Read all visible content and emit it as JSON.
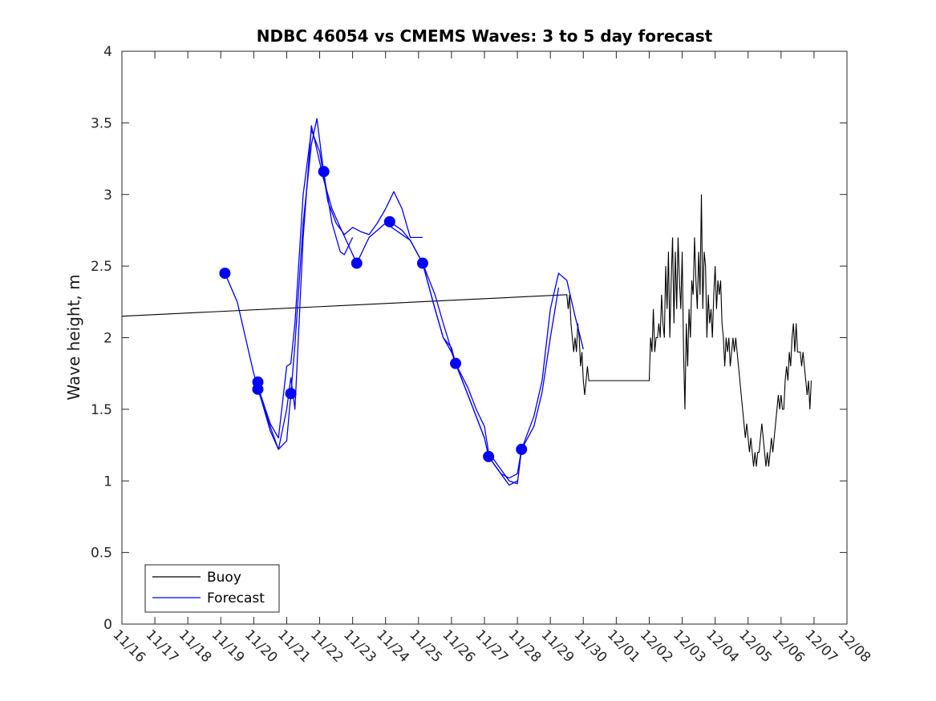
{
  "chart_data": {
    "type": "line",
    "title": "NDBC 46054 vs CMEMS Waves: 3 to 5 day forecast",
    "xlabel": "",
    "ylabel": "Wave height, m",
    "x_ticks": [
      "11/16",
      "11/17",
      "11/18",
      "11/19",
      "11/20",
      "11/21",
      "11/22",
      "11/23",
      "11/24",
      "11/25",
      "11/26",
      "11/27",
      "11/28",
      "11/29",
      "11/30",
      "12/01",
      "12/02",
      "12/03",
      "12/04",
      "12/05",
      "12/06",
      "12/07",
      "12/08"
    ],
    "y_ticks": [
      "0",
      "0.5",
      "1",
      "1.5",
      "2",
      "2.5",
      "3",
      "3.5",
      "4"
    ],
    "xlim": [
      "11/16",
      "12/08"
    ],
    "ylim": [
      0,
      4
    ],
    "grid": false,
    "legend_position": "bottom-left",
    "legend": [
      "Buoy",
      "Forecast"
    ],
    "colors": {
      "buoy": "#000000",
      "forecast": "#0000ff"
    },
    "series": [
      {
        "name": "Buoy",
        "color": "#000000",
        "points": [
          [
            "11/16 00:00",
            2.15
          ],
          [
            "11/29 12:00",
            2.3
          ],
          [
            "11/29 13:00",
            2.2
          ],
          [
            "11/29 14:00",
            2.3
          ],
          [
            "11/29 15:00",
            2.1
          ],
          [
            "11/29 16:00",
            2.0
          ],
          [
            "11/29 17:00",
            1.9
          ],
          [
            "11/29 18:00",
            2.0
          ],
          [
            "11/29 19:00",
            1.9
          ],
          [
            "11/29 20:00",
            2.1
          ],
          [
            "11/29 21:00",
            2.0
          ],
          [
            "11/29 22:00",
            1.8
          ],
          [
            "11/29 23:00",
            1.9
          ],
          [
            "11/30 00:00",
            1.7
          ],
          [
            "11/30 01:00",
            1.6
          ],
          [
            "11/30 02:00",
            1.7
          ],
          [
            "11/30 03:00",
            1.8
          ],
          [
            "11/30 04:00",
            1.7
          ],
          [
            "11/30 05:00",
            1.7
          ],
          [
            "12/02 00:00",
            1.7
          ],
          [
            "12/02 01:00",
            2.0
          ],
          [
            "12/02 02:00",
            1.9
          ],
          [
            "12/02 03:00",
            2.2
          ],
          [
            "12/02 04:00",
            1.9
          ],
          [
            "12/02 05:00",
            2.0
          ],
          [
            "12/02 06:00",
            2.0
          ],
          [
            "12/02 07:00",
            2.1
          ],
          [
            "12/02 08:00",
            2.0
          ],
          [
            "12/02 09:00",
            2.3
          ],
          [
            "12/02 10:00",
            2.1
          ],
          [
            "12/02 11:00",
            2.0
          ],
          [
            "12/02 12:00",
            2.5
          ],
          [
            "12/02 13:00",
            2.2
          ],
          [
            "12/02 14:00",
            2.6
          ],
          [
            "12/02 15:00",
            2.0
          ],
          [
            "12/02 16:00",
            2.4
          ],
          [
            "12/02 17:00",
            2.7
          ],
          [
            "12/02 18:00",
            2.1
          ],
          [
            "12/02 19:00",
            2.6
          ],
          [
            "12/02 20:00",
            2.2
          ],
          [
            "12/02 21:00",
            2.7
          ],
          [
            "12/02 22:00",
            2.4
          ],
          [
            "12/02 23:00",
            2.2
          ],
          [
            "12/03 00:00",
            2.6
          ],
          [
            "12/03 01:00",
            1.9
          ],
          [
            "12/03 02:00",
            1.5
          ],
          [
            "12/03 03:00",
            2.1
          ],
          [
            "12/03 04:00",
            1.8
          ],
          [
            "12/03 05:00",
            2.2
          ],
          [
            "12/03 06:00",
            2.0
          ],
          [
            "12/03 07:00",
            2.4
          ],
          [
            "12/03 08:00",
            2.3
          ],
          [
            "12/03 09:00",
            2.7
          ],
          [
            "12/03 10:00",
            2.4
          ],
          [
            "12/03 11:00",
            2.2
          ],
          [
            "12/03 12:00",
            2.6
          ],
          [
            "12/03 13:00",
            2.3
          ],
          [
            "12/03 14:00",
            3.0
          ],
          [
            "12/03 15:00",
            2.2
          ],
          [
            "12/03 16:00",
            2.6
          ],
          [
            "12/03 17:00",
            2.5
          ],
          [
            "12/03 18:00",
            2.0
          ],
          [
            "12/03 19:00",
            2.3
          ],
          [
            "12/03 20:00",
            2.1
          ],
          [
            "12/03 21:00",
            2.2
          ],
          [
            "12/03 22:00",
            2.0
          ],
          [
            "12/03 23:00",
            2.3
          ],
          [
            "12/04 00:00",
            2.5
          ],
          [
            "12/04 01:00",
            2.2
          ],
          [
            "12/04 02:00",
            2.4
          ],
          [
            "12/04 03:00",
            2.3
          ],
          [
            "12/04 04:00",
            2.4
          ],
          [
            "12/04 05:00",
            2.1
          ],
          [
            "12/04 06:00",
            2.0
          ],
          [
            "12/04 07:00",
            1.8
          ],
          [
            "12/04 08:00",
            2.0
          ],
          [
            "12/04 09:00",
            1.9
          ],
          [
            "12/04 10:00",
            2.0
          ],
          [
            "12/04 11:00",
            1.8
          ],
          [
            "12/04 12:00",
            1.9
          ],
          [
            "12/04 13:00",
            2.0
          ],
          [
            "12/04 14:00",
            1.9
          ],
          [
            "12/04 15:00",
            2.0
          ],
          [
            "12/04 16:00",
            1.9
          ],
          [
            "12/04 17:00",
            1.8
          ],
          [
            "12/04 18:00",
            1.7
          ],
          [
            "12/04 19:00",
            1.6
          ],
          [
            "12/04 20:00",
            1.5
          ],
          [
            "12/04 21:00",
            1.4
          ],
          [
            "12/04 22:00",
            1.3
          ],
          [
            "12/04 23:00",
            1.4
          ],
          [
            "12/05 00:00",
            1.3
          ],
          [
            "12/05 01:00",
            1.2
          ],
          [
            "12/05 02:00",
            1.3
          ],
          [
            "12/05 03:00",
            1.2
          ],
          [
            "12/05 04:00",
            1.1
          ],
          [
            "12/05 05:00",
            1.2
          ],
          [
            "12/05 06:00",
            1.1
          ],
          [
            "12/05 07:00",
            1.2
          ],
          [
            "12/05 08:00",
            1.2
          ],
          [
            "12/05 09:00",
            1.3
          ],
          [
            "12/05 10:00",
            1.4
          ],
          [
            "12/05 11:00",
            1.3
          ],
          [
            "12/05 12:00",
            1.2
          ],
          [
            "12/05 13:00",
            1.1
          ],
          [
            "12/05 14:00",
            1.2
          ],
          [
            "12/05 15:00",
            1.1
          ],
          [
            "12/05 16:00",
            1.2
          ],
          [
            "12/05 17:00",
            1.3
          ],
          [
            "12/05 18:00",
            1.2
          ],
          [
            "12/05 19:00",
            1.3
          ],
          [
            "12/05 20:00",
            1.4
          ],
          [
            "12/05 21:00",
            1.5
          ],
          [
            "12/05 22:00",
            1.6
          ],
          [
            "12/05 23:00",
            1.5
          ],
          [
            "12/06 00:00",
            1.6
          ],
          [
            "12/06 01:00",
            1.5
          ],
          [
            "12/06 02:00",
            1.5
          ],
          [
            "12/06 03:00",
            1.7
          ],
          [
            "12/06 04:00",
            1.8
          ],
          [
            "12/06 05:00",
            1.7
          ],
          [
            "12/06 06:00",
            1.9
          ],
          [
            "12/06 07:00",
            1.8
          ],
          [
            "12/06 08:00",
            2.0
          ],
          [
            "12/06 09:00",
            2.1
          ],
          [
            "12/06 10:00",
            1.9
          ],
          [
            "12/06 11:00",
            2.1
          ],
          [
            "12/06 12:00",
            1.9
          ],
          [
            "12/06 13:00",
            1.9
          ],
          [
            "12/06 14:00",
            1.9
          ],
          [
            "12/06 15:00",
            1.8
          ],
          [
            "12/06 16:00",
            1.9
          ],
          [
            "12/06 17:00",
            1.8
          ],
          [
            "12/06 18:00",
            1.7
          ],
          [
            "12/06 19:00",
            1.6
          ],
          [
            "12/06 20:00",
            1.7
          ],
          [
            "12/06 21:00",
            1.5
          ],
          [
            "12/06 22:00",
            1.7
          ]
        ]
      },
      {
        "name": "Forecast",
        "color": "#0000ff",
        "segments": [
          [
            [
              "11/19 03:00",
              2.45
            ],
            [
              "11/19 12:00",
              2.25
            ],
            [
              "11/19 18:00",
              2.0
            ],
            [
              "11/20 00:00",
              1.75
            ],
            [
              "11/20 06:00",
              1.55
            ],
            [
              "11/20 12:00",
              1.35
            ],
            [
              "11/20 18:00",
              1.22
            ],
            [
              "11/21 00:00",
              1.28
            ],
            [
              "11/21 03:00",
              1.6
            ],
            [
              "11/21 06:00",
              1.95
            ],
            [
              "11/21 12:00",
              2.8
            ],
            [
              "11/21 18:00",
              3.35
            ],
            [
              "11/21 22:00",
              3.53
            ],
            [
              "11/22 03:00",
              3.15
            ],
            [
              "11/22 09:00",
              2.8
            ],
            [
              "11/22 15:00",
              2.6
            ],
            [
              "11/22 18:00",
              2.58
            ],
            [
              "11/23 00:00",
              2.7
            ]
          ],
          [
            [
              "11/20 03:00",
              1.66
            ],
            [
              "11/20 12:00",
              1.4
            ],
            [
              "11/20 18:00",
              1.3
            ],
            [
              "11/21 00:00",
              1.8
            ],
            [
              "11/21 03:00",
              1.82
            ],
            [
              "11/21 06:00",
              2.1
            ],
            [
              "11/21 12:00",
              3.0
            ],
            [
              "11/21 18:00",
              3.45
            ],
            [
              "11/22 00:00",
              3.3
            ],
            [
              "11/22 06:00",
              2.95
            ],
            [
              "11/22 12:00",
              2.8
            ],
            [
              "11/22 18:00",
              2.72
            ],
            [
              "11/23 00:00",
              2.77
            ],
            [
              "11/23 06:00",
              2.74
            ],
            [
              "11/23 12:00",
              2.72
            ],
            [
              "11/23 18:00",
              2.8
            ],
            [
              "11/24 00:00",
              2.9
            ],
            [
              "11/24 06:00",
              3.02
            ],
            [
              "11/24 12:00",
              2.9
            ],
            [
              "11/24 18:00",
              2.7
            ],
            [
              "11/25 03:00",
              2.7
            ]
          ],
          [
            [
              "11/20 03:00",
              1.64
            ],
            [
              "11/20 12:00",
              1.38
            ],
            [
              "11/20 18:00",
              1.22
            ],
            [
              "11/21 00:00",
              1.5
            ],
            [
              "11/21 03:00",
              1.72
            ],
            [
              "11/21 06:00",
              1.5
            ],
            [
              "11/21 12:00",
              2.7
            ],
            [
              "11/21 18:00",
              3.48
            ],
            [
              "11/22 03:00",
              3.1
            ],
            [
              "11/22 09:00",
              2.9
            ],
            [
              "11/22 15:00",
              2.77
            ],
            [
              "11/23 03:00",
              2.52
            ],
            [
              "11/23 12:00",
              2.7
            ],
            [
              "11/24 00:00",
              2.8
            ],
            [
              "11/24 12:00",
              2.72
            ],
            [
              "11/24 18:00",
              2.68
            ],
            [
              "11/25 03:00",
              2.52
            ],
            [
              "11/25 12:00",
              2.2
            ],
            [
              "11/25 18:00",
              2.0
            ],
            [
              "11/26 00:00",
              1.93
            ],
            [
              "11/26 03:00",
              1.82
            ],
            [
              "11/26 12:00",
              1.6
            ],
            [
              "11/26 18:00",
              1.45
            ],
            [
              "11/27 00:00",
              1.3
            ],
            [
              "11/27 03:00",
              1.17
            ],
            [
              "11/27 12:00",
              1.05
            ],
            [
              "11/27 18:00",
              1.02
            ],
            [
              "11/28 00:00",
              1.05
            ],
            [
              "11/28 03:00",
              1.22
            ],
            [
              "11/28 12:00",
              1.45
            ],
            [
              "11/28 18:00",
              1.7
            ],
            [
              "11/29 00:00",
              2.2
            ],
            [
              "11/29 06:00",
              2.45
            ],
            [
              "11/29 12:00",
              2.4
            ],
            [
              "11/29 18:00",
              2.15
            ],
            [
              "11/30 00:00",
              1.92
            ]
          ],
          [
            [
              "11/24 03:00",
              2.81
            ],
            [
              "11/24 12:00",
              2.75
            ],
            [
              "11/24 18:00",
              2.68
            ],
            [
              "11/25 03:00",
              2.52
            ],
            [
              "11/25 12:00",
              2.3
            ],
            [
              "11/25 18:00",
              2.1
            ],
            [
              "11/26 03:00",
              1.82
            ],
            [
              "11/26 12:00",
              1.65
            ],
            [
              "11/26 18:00",
              1.5
            ],
            [
              "11/27 00:00",
              1.38
            ],
            [
              "11/27 03:00",
              1.2
            ],
            [
              "11/27 12:00",
              1.08
            ],
            [
              "11/27 18:00",
              1.0
            ],
            [
              "11/28 00:00",
              0.98
            ],
            [
              "11/28 03:00",
              1.22
            ],
            [
              "11/28 12:00",
              1.38
            ],
            [
              "11/28 18:00",
              1.62
            ],
            [
              "11/29 00:00",
              2.0
            ],
            [
              "11/29 06:00",
              2.35
            ]
          ],
          [
            [
              "11/25 03:00",
              2.52
            ],
            [
              "11/25 12:00",
              2.2
            ],
            [
              "11/25 18:00",
              2.0
            ],
            [
              "11/26 00:00",
              1.9
            ],
            [
              "11/26 03:00",
              1.82
            ],
            [
              "11/26 12:00",
              1.6
            ],
            [
              "11/26 18:00",
              1.45
            ],
            [
              "11/27 00:00",
              1.3
            ]
          ],
          [
            [
              "11/27 03:00",
              1.17
            ],
            [
              "11/27 12:00",
              1.05
            ],
            [
              "11/27 18:00",
              0.97
            ],
            [
              "11/28 00:00",
              1.0
            ]
          ]
        ],
        "markers": [
          [
            "11/19 03:00",
            2.45
          ],
          [
            "11/20 03:00",
            1.69
          ],
          [
            "11/20 03:00",
            1.64
          ],
          [
            "11/21 03:00",
            1.61
          ],
          [
            "11/22 03:00",
            3.16
          ],
          [
            "11/23 03:00",
            2.52
          ],
          [
            "11/24 03:00",
            2.81
          ],
          [
            "11/25 03:00",
            2.52
          ],
          [
            "11/26 03:00",
            1.82
          ],
          [
            "11/27 03:00",
            1.17
          ],
          [
            "11/28 03:00",
            1.22
          ]
        ]
      }
    ]
  }
}
